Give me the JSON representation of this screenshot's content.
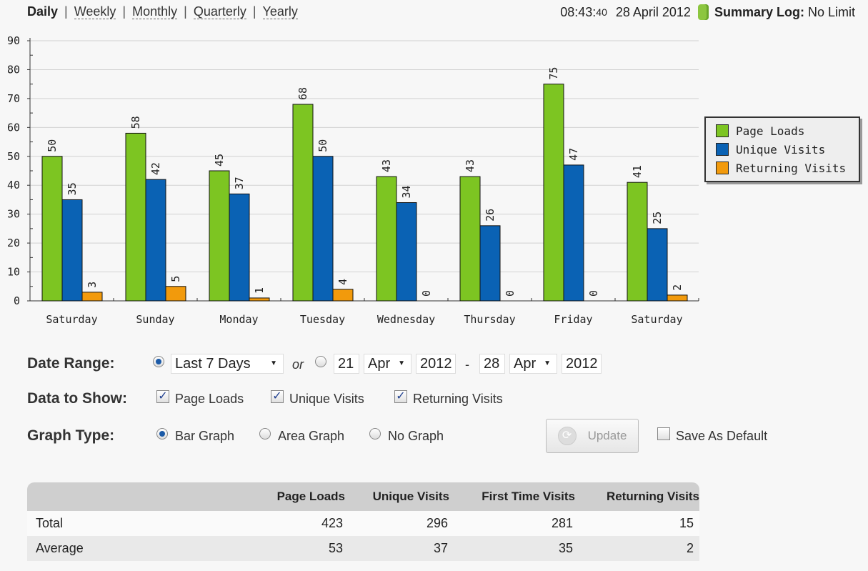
{
  "nav": {
    "daily": "Daily",
    "weekly": "Weekly",
    "monthly": "Monthly",
    "quarterly": "Quarterly",
    "yearly": "Yearly",
    "sep": "|"
  },
  "header": {
    "time_hm": "08:43:",
    "time_s": "40",
    "date": "28 April 2012",
    "summary_label": "Summary Log:",
    "summary_value": "No Limit"
  },
  "colors": {
    "page_loads": "#7dc522",
    "unique_visits": "#0a62b4",
    "returning_visits": "#f29a0c"
  },
  "chart_data": {
    "type": "bar",
    "categories": [
      "Saturday",
      "Sunday",
      "Monday",
      "Tuesday",
      "Wednesday",
      "Thursday",
      "Friday",
      "Saturday"
    ],
    "series": [
      {
        "name": "Page Loads",
        "values": [
          50,
          58,
          45,
          68,
          43,
          43,
          75,
          41
        ]
      },
      {
        "name": "Unique Visits",
        "values": [
          35,
          42,
          37,
          50,
          34,
          26,
          47,
          25
        ]
      },
      {
        "name": "Returning Visits",
        "values": [
          3,
          5,
          1,
          4,
          0,
          0,
          0,
          2
        ]
      }
    ],
    "ylim": [
      0,
      90
    ],
    "yticks": [
      "0",
      "10",
      "20",
      "30",
      "40",
      "50",
      "60",
      "70",
      "80",
      "90"
    ],
    "grid": true,
    "legend": "right"
  },
  "controls": {
    "date_range_label": "Date Range:",
    "range_select": "Last 7 Days",
    "or": "or",
    "from_day": "21",
    "from_month": "Apr",
    "from_year": "2012",
    "dash": "-",
    "to_day": "28",
    "to_month": "Apr",
    "to_year": "2012",
    "data_label": "Data to Show:",
    "cb_page_loads": "Page Loads",
    "cb_unique": "Unique Visits",
    "cb_returning": "Returning Visits",
    "check_mark": "✓",
    "graph_label": "Graph Type:",
    "bar_graph": "Bar Graph",
    "area_graph": "Area Graph",
    "no_graph": "No Graph",
    "update": "Update",
    "update_icon": "⟳",
    "save_default": "Save As Default"
  },
  "table": {
    "headers": [
      "Page Loads",
      "Unique Visits",
      "First Time Visits",
      "Returning Visits"
    ],
    "rows": [
      {
        "label": "Total",
        "values": [
          "423",
          "296",
          "281",
          "15"
        ]
      },
      {
        "label": "Average",
        "values": [
          "53",
          "37",
          "35",
          "2"
        ]
      }
    ]
  }
}
